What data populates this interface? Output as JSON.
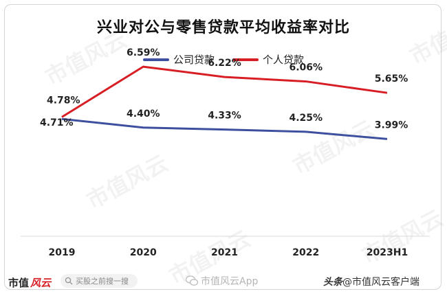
{
  "header": {
    "title": "兴业对公与零售贷款平均收益率对比"
  },
  "legend": {
    "corporate": "公司贷款",
    "personal": "个人贷款"
  },
  "colors": {
    "corporate": "#3d4f9e",
    "personal": "#d81e25"
  },
  "chart_data": {
    "type": "line",
    "title": "兴业对公与零售贷款平均收益率对比",
    "categories": [
      "2019",
      "2020",
      "2021",
      "2022",
      "2023H1"
    ],
    "series": [
      {
        "name": "公司贷款",
        "values": [
          4.71,
          4.4,
          4.33,
          4.25,
          3.99
        ],
        "labels": [
          "4.71%",
          "4.40%",
          "4.33%",
          "4.25%",
          "3.99%"
        ]
      },
      {
        "name": "个人贷款",
        "values": [
          4.78,
          6.59,
          6.22,
          6.06,
          5.65
        ],
        "labels": [
          "4.78%",
          "6.59%",
          "6.22%",
          "6.06%",
          "5.65%"
        ]
      }
    ],
    "ylim": [
      0,
      8
    ],
    "xlabel": "",
    "ylabel": "",
    "grid": false,
    "legend_position": "top-center"
  },
  "footer": {
    "brand_part1": "市值",
    "brand_part2": "风云",
    "search_placeholder": "买股之前搜一搜",
    "app_watermark": "市值风云App",
    "credit_part1": "头条",
    "credit_part2": "@市值风云客户端"
  },
  "watermark_text": "市值风云"
}
